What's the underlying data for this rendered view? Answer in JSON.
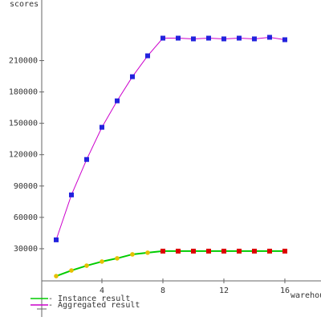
{
  "chart_data": {
    "type": "line",
    "y_label": "scores",
    "x_label": "warehouses",
    "xlim": [
      0,
      18.37
    ],
    "xticks": [
      4,
      8,
      12,
      16
    ],
    "ylim": [
      0,
      268000
    ],
    "yticks": [
      30000,
      60000,
      90000,
      120000,
      150000,
      180000,
      210000
    ],
    "series": [
      {
        "name": " - Instance result",
        "color": "#00cc00",
        "marker_colors": [
          "#e6c000",
          "#e6c000",
          "#e6c000",
          "#e6c000",
          "#e6c000",
          "#e6c000",
          "#e6c000",
          "#dd0000",
          "#dd0000",
          "#dd0000",
          "#dd0000",
          "#dd0000",
          "#dd0000",
          "#dd0000",
          "#dd0000",
          "#dd0000"
        ],
        "x": [
          1,
          2,
          3,
          4,
          5,
          6,
          7,
          8,
          9,
          10,
          11,
          12,
          13,
          14,
          15,
          16
        ],
        "values": [
          3800,
          9200,
          13800,
          17700,
          20800,
          24600,
          26200,
          27700,
          27700,
          27700,
          27700,
          27700,
          27700,
          27700,
          27700,
          27700
        ]
      },
      {
        "name": " - Aggregated result",
        "color": "#cc00cc",
        "marker_color": "#2222dd",
        "x": [
          1,
          2,
          3,
          4,
          5,
          6,
          7,
          8,
          9,
          10,
          11,
          12,
          13,
          14,
          15,
          16
        ],
        "values": [
          38500,
          81500,
          115400,
          146200,
          171500,
          194600,
          214600,
          231500,
          231500,
          230800,
          231500,
          230800,
          231500,
          230800,
          232300,
          230000
        ]
      }
    ]
  }
}
